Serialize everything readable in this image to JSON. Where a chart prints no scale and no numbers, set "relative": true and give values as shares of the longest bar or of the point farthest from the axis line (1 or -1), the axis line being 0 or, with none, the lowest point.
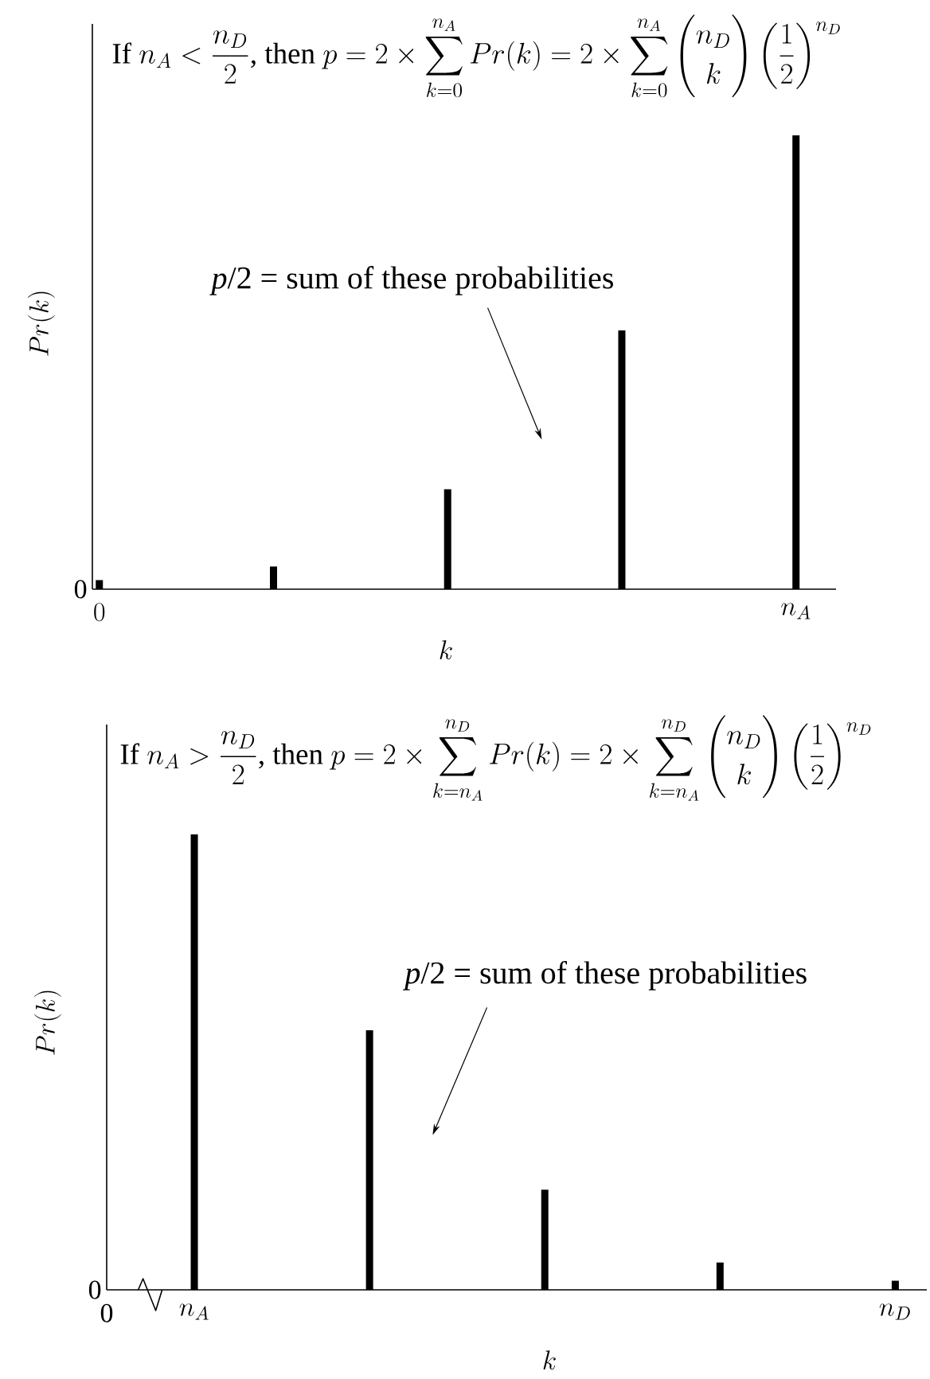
{
  "chart_data": [
    {
      "type": "bar",
      "title": "\\text{If }n_A < \\frac{n_D}{2}\\text{, then }p = 2\\times\\sum_{k=0}^{n_A} Pr(k) = 2\\times\\sum_{k=0}^{n_A}\\binom{n_D}{k}\\left(\\frac{1}{2}\\right)^{n_D}",
      "xlabel": "k",
      "ylabel": "Pr(k)",
      "relative": true,
      "categories": [
        "0",
        null,
        null,
        null,
        "n_A"
      ],
      "values": [
        0.02,
        0.05,
        0.22,
        0.57,
        1
      ],
      "color": "#000000",
      "annotations": [
        "*p*/2 = sum of these probabilities",
        "0"
      ]
    },
    {
      "type": "bar",
      "title": "\\text{If }n_A > \\frac{n_D}{2}\\text{, then }p = 2\\times\\sum_{k=n_A}^{n_D} Pr(k) = 2\\times\\sum_{k=n_A}^{n_D}\\binom{n_D}{k}\\left(\\frac{1}{2}\\right)^{n_D}",
      "xlabel": "k",
      "ylabel": "Pr(k)",
      "relative": true,
      "categories": [
        "n_A",
        null,
        null,
        null,
        "n_D"
      ],
      "values": [
        1,
        0.57,
        0.22,
        0.06,
        0.02
      ],
      "color": "#000000",
      "annotations": [
        "*p*/2 = sum of these probabilities",
        "0",
        "0"
      ]
    }
  ]
}
